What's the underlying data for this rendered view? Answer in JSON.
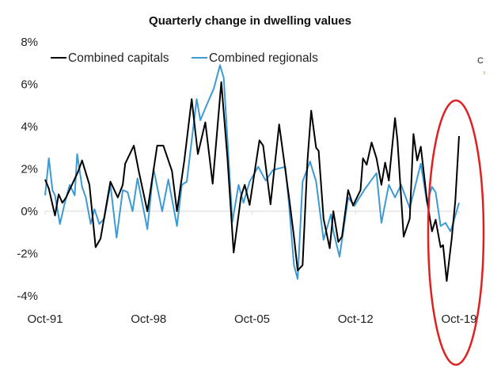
{
  "chart_data": {
    "type": "line",
    "title": "Quarterly change in dwelling values",
    "xlabel": "",
    "ylabel": "",
    "ylim": [
      -4,
      8
    ],
    "y_ticks": [
      "8%",
      "6%",
      "4%",
      "2%",
      "0%",
      "-2%",
      "-4%"
    ],
    "y_tick_values": [
      8,
      6,
      4,
      2,
      0,
      -2,
      -4
    ],
    "x_ticks": [
      "Oct-91",
      "Oct-98",
      "Oct-05",
      "Oct-12",
      "Oct-19"
    ],
    "x_tick_dates": [
      "1991-10",
      "1998-10",
      "2005-10",
      "2012-10",
      "2019-10"
    ],
    "xlim": [
      "1991-10",
      "2019-12"
    ],
    "grid": false,
    "legend_position": "top-left",
    "colors": {
      "capitals": "#000000",
      "regionals": "#3d9ad4",
      "annotation": "#e02020",
      "zero_line": "#d9d9d9"
    },
    "annotation_fragment": "C",
    "annotation": "red ellipse highlighting 2018-2019",
    "series": [
      {
        "name": "Combined capitals",
        "color": "#000000",
        "points": [
          [
            "1991-10",
            1.5
          ],
          [
            "1992-01",
            1.07
          ],
          [
            "1992-06",
            -0.2
          ],
          [
            "1992-09",
            0.8
          ],
          [
            "1992-12",
            0.4
          ],
          [
            "1993-03",
            0.65
          ],
          [
            "1994-01",
            1.9
          ],
          [
            "1994-04",
            2.4
          ],
          [
            "1994-10",
            1.25
          ],
          [
            "1995-03",
            -1.7
          ],
          [
            "1995-07",
            -1.3
          ],
          [
            "1996-03",
            1.4
          ],
          [
            "1996-09",
            0.65
          ],
          [
            "1997-01",
            1.25
          ],
          [
            "1997-03",
            2.25
          ],
          [
            "1997-10",
            3.1
          ],
          [
            "1998-02",
            1.9
          ],
          [
            "1998-09",
            0.0
          ],
          [
            "1999-05",
            3.1
          ],
          [
            "1999-10",
            3.1
          ],
          [
            "2000-05",
            1.9
          ],
          [
            "2000-09",
            0.0
          ],
          [
            "2001-03",
            2.4
          ],
          [
            "2001-09",
            5.3
          ],
          [
            "2002-02",
            2.7
          ],
          [
            "2002-08",
            4.2
          ],
          [
            "2003-02",
            1.3
          ],
          [
            "2003-09",
            6.1
          ],
          [
            "2004-02",
            2.5
          ],
          [
            "2004-07",
            -1.95
          ],
          [
            "2005-01",
            0.7
          ],
          [
            "2005-04",
            1.25
          ],
          [
            "2005-08",
            0.3
          ],
          [
            "2006-04",
            3.35
          ],
          [
            "2006-07",
            3.1
          ],
          [
            "2007-01",
            0.33
          ],
          [
            "2007-08",
            4.1
          ],
          [
            "2008-04",
            0.65
          ],
          [
            "2008-08",
            -1.2
          ],
          [
            "2008-11",
            -2.8
          ],
          [
            "2009-03",
            -2.55
          ],
          [
            "2009-07",
            2.4
          ],
          [
            "2009-10",
            4.75
          ],
          [
            "2010-02",
            3.0
          ],
          [
            "2010-04",
            2.85
          ],
          [
            "2010-08",
            -0.35
          ],
          [
            "2011-01",
            -1.75
          ],
          [
            "2011-04",
            0.0
          ],
          [
            "2011-08",
            -1.45
          ],
          [
            "2011-11",
            -1.2
          ],
          [
            "2012-04",
            1.0
          ],
          [
            "2012-08",
            0.27
          ],
          [
            "2013-02",
            1.0
          ],
          [
            "2013-04",
            2.5
          ],
          [
            "2013-07",
            2.2
          ],
          [
            "2013-11",
            3.25
          ],
          [
            "2014-03",
            2.5
          ],
          [
            "2014-07",
            1.25
          ],
          [
            "2014-10",
            2.3
          ],
          [
            "2015-01",
            1.45
          ],
          [
            "2015-06",
            4.4
          ],
          [
            "2015-08",
            3.35
          ],
          [
            "2016-01",
            -1.2
          ],
          [
            "2016-06",
            -0.35
          ],
          [
            "2016-09",
            3.65
          ],
          [
            "2016-12",
            2.4
          ],
          [
            "2017-03",
            3.05
          ],
          [
            "2017-08",
            0.5
          ],
          [
            "2017-12",
            -0.95
          ],
          [
            "2018-03",
            -0.4
          ],
          [
            "2018-07",
            -1.7
          ],
          [
            "2018-09",
            -1.6
          ],
          [
            "2018-12",
            -3.3
          ],
          [
            "2019-04",
            -1.3
          ],
          [
            "2019-07",
            0.5
          ],
          [
            "2019-10",
            3.55
          ]
        ]
      },
      {
        "name": "Combined regionals",
        "color": "#3d9ad4",
        "points": [
          [
            "1991-10",
            0.75
          ],
          [
            "1992-01",
            2.5
          ],
          [
            "1992-04",
            1.0
          ],
          [
            "1992-06",
            0.75
          ],
          [
            "1992-10",
            -0.6
          ],
          [
            "1993-02",
            0.4
          ],
          [
            "1993-06",
            1.25
          ],
          [
            "1993-10",
            0.75
          ],
          [
            "1993-12",
            2.7
          ],
          [
            "1994-04",
            1.15
          ],
          [
            "1994-07",
            0.65
          ],
          [
            "1994-11",
            -0.6
          ],
          [
            "1995-02",
            0.1
          ],
          [
            "1995-06",
            -0.6
          ],
          [
            "1995-10",
            -0.35
          ],
          [
            "1996-03",
            1.25
          ],
          [
            "1996-08",
            -1.25
          ],
          [
            "1997-01",
            1.0
          ],
          [
            "1997-05",
            0.9
          ],
          [
            "1997-09",
            0.0
          ],
          [
            "1998-01",
            1.55
          ],
          [
            "1998-09",
            -0.85
          ],
          [
            "1999-02",
            2.0
          ],
          [
            "1999-09",
            0.0
          ],
          [
            "2000-02",
            1.5
          ],
          [
            "2000-09",
            -0.7
          ],
          [
            "2001-01",
            1.25
          ],
          [
            "2001-05",
            1.4
          ],
          [
            "2002-01",
            5.3
          ],
          [
            "2002-04",
            4.3
          ],
          [
            "2002-09",
            5.0
          ],
          [
            "2003-03",
            5.8
          ],
          [
            "2003-08",
            6.9
          ],
          [
            "2003-11",
            6.3
          ],
          [
            "2004-06",
            -0.5
          ],
          [
            "2004-11",
            1.25
          ],
          [
            "2005-03",
            0.4
          ],
          [
            "2005-08",
            1.4
          ],
          [
            "2006-03",
            2.1
          ],
          [
            "2006-09",
            1.45
          ],
          [
            "2007-03",
            1.95
          ],
          [
            "2008-01",
            2.1
          ],
          [
            "2008-04",
            0.3
          ],
          [
            "2008-08",
            -2.55
          ],
          [
            "2008-11",
            -3.2
          ],
          [
            "2009-03",
            1.4
          ],
          [
            "2009-09",
            2.35
          ],
          [
            "2010-02",
            1.4
          ],
          [
            "2010-08",
            -1.35
          ],
          [
            "2011-02",
            -0.15
          ],
          [
            "2011-04",
            -0.95
          ],
          [
            "2011-09",
            -2.15
          ],
          [
            "2012-04",
            0.65
          ],
          [
            "2012-09",
            0.25
          ],
          [
            "2013-05",
            1.0
          ],
          [
            "2014-03",
            1.8
          ],
          [
            "2014-07",
            -0.55
          ],
          [
            "2015-01",
            1.25
          ],
          [
            "2015-06",
            0.65
          ],
          [
            "2015-11",
            1.25
          ],
          [
            "2016-06",
            0.15
          ],
          [
            "2017-03",
            2.25
          ],
          [
            "2017-08",
            0.4
          ],
          [
            "2017-12",
            1.15
          ],
          [
            "2018-03",
            0.9
          ],
          [
            "2018-07",
            -0.7
          ],
          [
            "2018-11",
            -0.55
          ],
          [
            "2019-03",
            -0.95
          ],
          [
            "2019-05",
            -0.6
          ],
          [
            "2019-10",
            0.4
          ]
        ]
      }
    ]
  }
}
